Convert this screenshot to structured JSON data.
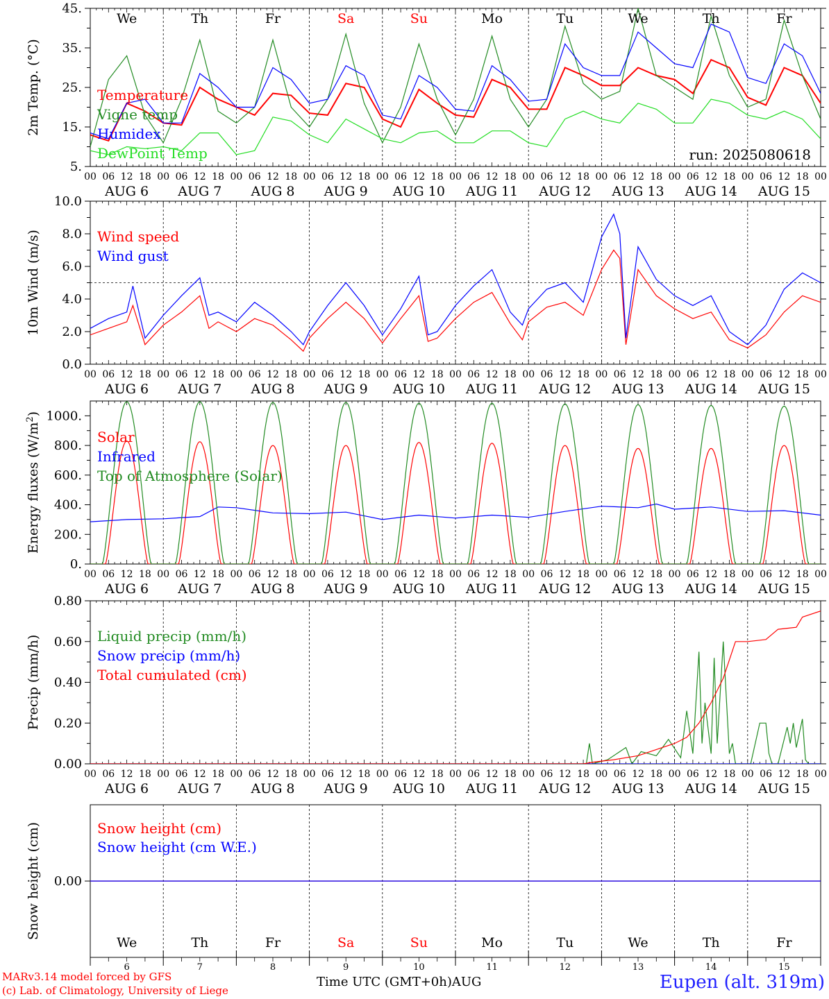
{
  "footer": {
    "credit_line1": "MARv3.14 model forced by GFS",
    "credit_line2": "(c) Lab. of Climatology, University of Liege",
    "station": "Eupen (alt. 319m)",
    "time_axis_label": "Time UTC (GMT+0h)AUG"
  },
  "run_label": "run: 2025080618",
  "day_names": [
    "We",
    "Th",
    "Fr",
    "Sa",
    "Su",
    "Mo",
    "Tu",
    "We",
    "Th",
    "Fr"
  ],
  "weekend_days": [
    3,
    4
  ],
  "day_labels": [
    "AUG 6",
    "AUG 7",
    "AUG 8",
    "AUG 9",
    "AUG 10",
    "AUG 11",
    "AUG 12",
    "AUG 13",
    "AUG 14",
    "AUG 15"
  ],
  "bottom_day_numbers": [
    "6",
    "7",
    "8",
    "9",
    "10",
    "11",
    "12",
    "13",
    "14",
    "15"
  ],
  "hour_ticks": [
    "00",
    "06",
    "12",
    "18"
  ],
  "colors": {
    "red": "#ff0000",
    "dark_green": "#228b22",
    "blue": "#0000ff",
    "light_green": "#22dd22",
    "weekend": "#ff0000"
  },
  "chart_data": [
    {
      "type": "line",
      "ylabel": "2m Temp. (°C)",
      "ylim": [
        5,
        45
      ],
      "yticks": [
        "5.",
        "15.",
        "25.",
        "35.",
        "45."
      ],
      "ytick_values": [
        5,
        15,
        25,
        35,
        45
      ],
      "x_unit": "hours since Aug 6 00 UTC",
      "series": [
        {
          "name": "Temperature",
          "color": "#ff0000",
          "x": [
            0,
            6,
            12,
            18,
            24,
            30,
            36,
            42,
            48,
            54,
            60,
            66,
            72,
            78,
            84,
            90,
            96,
            102,
            108,
            114,
            120,
            126,
            132,
            138,
            144,
            150,
            156,
            162,
            168,
            174,
            180,
            186,
            192,
            198,
            204,
            210,
            216,
            222,
            228,
            234,
            240
          ],
          "values": [
            13,
            11.5,
            21,
            19,
            16,
            15.5,
            25,
            22,
            20,
            18,
            23.5,
            23,
            18.5,
            18,
            26,
            25,
            17,
            15,
            24.5,
            21,
            18,
            17.5,
            27,
            25,
            19.5,
            19.5,
            30,
            28,
            25.5,
            25.5,
            30,
            28,
            27,
            23.5,
            32,
            30,
            22.5,
            20.5,
            30,
            28,
            21
          ]
        },
        {
          "name": "Vigne temp",
          "color": "#228b22",
          "x": [
            0,
            6,
            12,
            18,
            24,
            30,
            36,
            42,
            48,
            54,
            60,
            66,
            72,
            78,
            84,
            90,
            96,
            102,
            108,
            114,
            120,
            126,
            132,
            138,
            144,
            150,
            156,
            162,
            168,
            174,
            180,
            186,
            192,
            198,
            204,
            210,
            216,
            222,
            228,
            234,
            240
          ],
          "values": [
            10,
            27,
            33,
            18,
            11,
            22,
            37,
            19,
            16,
            20,
            37,
            20,
            15,
            22,
            38.5,
            21,
            11,
            20,
            36,
            22,
            13,
            22,
            38,
            22,
            15,
            22,
            40.5,
            26,
            22,
            24,
            45,
            28,
            25,
            22,
            43,
            28,
            20,
            22,
            42,
            28,
            17
          ]
        },
        {
          "name": "Humidex",
          "color": "#0000ff",
          "x": [
            0,
            6,
            12,
            18,
            24,
            30,
            36,
            42,
            48,
            54,
            60,
            66,
            72,
            78,
            84,
            90,
            96,
            102,
            108,
            114,
            120,
            126,
            132,
            138,
            144,
            150,
            156,
            162,
            168,
            174,
            180,
            186,
            192,
            198,
            204,
            210,
            216,
            222,
            228,
            234,
            240
          ],
          "values": [
            13.5,
            12,
            21,
            22,
            16,
            16,
            28.5,
            25,
            20,
            20,
            30,
            27,
            21,
            22,
            30.5,
            28,
            18,
            17,
            28,
            25,
            19.5,
            19,
            30.5,
            27,
            21.5,
            22,
            36,
            30,
            28,
            28,
            39,
            35,
            31,
            30,
            41,
            39,
            27.5,
            26,
            36,
            33,
            23.5
          ]
        },
        {
          "name": "DewPoint Temp",
          "color": "#22dd22",
          "x": [
            0,
            6,
            12,
            18,
            24,
            30,
            36,
            42,
            48,
            54,
            60,
            66,
            72,
            78,
            84,
            90,
            96,
            102,
            108,
            114,
            120,
            126,
            132,
            138,
            144,
            150,
            156,
            162,
            168,
            174,
            180,
            186,
            192,
            198,
            204,
            210,
            216,
            222,
            228,
            234,
            240
          ],
          "values": [
            9,
            8,
            10,
            9.5,
            10,
            9,
            13.5,
            13.5,
            8,
            9,
            17.5,
            16.5,
            13,
            11,
            17,
            14.5,
            12,
            11,
            13.5,
            14,
            11,
            11,
            14,
            14,
            11,
            10,
            17,
            19,
            17,
            16,
            21,
            19.5,
            16,
            16,
            22,
            21,
            18,
            17,
            19,
            17,
            12
          ]
        }
      ],
      "annotations": [
        "run: 2025080618"
      ]
    },
    {
      "type": "line",
      "ylabel": "10m Wind (m/s)",
      "ylim": [
        0,
        10
      ],
      "yticks": [
        "0.0",
        "2.0",
        "4.0",
        "6.0",
        "8.0",
        "10.0"
      ],
      "ytick_values": [
        0,
        2,
        4,
        6,
        8,
        10
      ],
      "reference_line": 5,
      "x_unit": "hours since Aug 6 00 UTC",
      "series": [
        {
          "name": "Wind speed",
          "color": "#ff0000",
          "x": [
            0,
            6,
            12,
            14,
            18,
            24,
            30,
            36,
            39,
            42,
            48,
            54,
            60,
            66,
            70,
            72,
            78,
            84,
            90,
            96,
            102,
            108,
            111,
            114,
            120,
            126,
            132,
            138,
            142,
            144,
            150,
            156,
            162,
            168,
            172,
            174,
            176,
            180,
            186,
            192,
            198,
            204,
            210,
            216,
            222,
            228,
            234,
            240
          ],
          "values": [
            1.8,
            2.2,
            2.6,
            3.6,
            1.2,
            2.4,
            3.2,
            4.2,
            2.2,
            2.6,
            2.0,
            2.8,
            2.4,
            1.5,
            0.8,
            1.6,
            2.8,
            3.8,
            2.8,
            1.3,
            2.8,
            4.2,
            1.4,
            1.6,
            2.8,
            3.8,
            4.4,
            2.5,
            1.5,
            2.6,
            3.5,
            3.8,
            3.0,
            5.8,
            7.0,
            6.5,
            1.2,
            5.8,
            4.2,
            3.4,
            2.8,
            3.2,
            1.5,
            1.0,
            1.8,
            3.2,
            4.2,
            3.8
          ]
        },
        {
          "name": "Wind gust",
          "color": "#0000ff",
          "x": [
            0,
            6,
            12,
            14,
            18,
            24,
            30,
            36,
            39,
            42,
            48,
            54,
            60,
            66,
            70,
            72,
            78,
            84,
            90,
            96,
            102,
            108,
            111,
            114,
            120,
            126,
            132,
            138,
            142,
            144,
            150,
            156,
            162,
            168,
            172,
            174,
            176,
            180,
            186,
            192,
            198,
            204,
            210,
            216,
            222,
            228,
            234,
            240
          ],
          "values": [
            2.2,
            2.8,
            3.2,
            4.8,
            1.6,
            3.0,
            4.2,
            5.3,
            3.0,
            3.2,
            2.6,
            3.8,
            3.0,
            2.0,
            1.2,
            2.0,
            3.6,
            5.0,
            3.6,
            1.8,
            3.4,
            5.4,
            1.8,
            2.0,
            3.6,
            4.8,
            5.8,
            3.2,
            2.4,
            3.4,
            4.6,
            5.0,
            3.8,
            7.8,
            9.2,
            8.0,
            1.6,
            7.2,
            5.2,
            4.2,
            3.6,
            4.2,
            2.0,
            1.2,
            2.4,
            4.6,
            5.6,
            5.0
          ]
        }
      ]
    },
    {
      "type": "line",
      "ylabel": "Energy fluxes (W/m²)",
      "ylim": [
        0,
        1100
      ],
      "yticks": [
        "0.",
        "200.",
        "400.",
        "600.",
        "800.",
        "1000."
      ],
      "ytick_values": [
        0,
        200,
        400,
        600,
        800,
        1000
      ],
      "x_unit": "hours since Aug 6 00 UTC",
      "series": [
        {
          "name": "Solar",
          "color": "#ff0000",
          "daily_peaks": [
            830,
            825,
            800,
            800,
            820,
            815,
            800,
            780,
            780,
            800
          ]
        },
        {
          "name": "Infrared",
          "color": "#0000ff",
          "x": [
            0,
            12,
            24,
            36,
            42,
            48,
            60,
            72,
            84,
            96,
            108,
            120,
            132,
            144,
            156,
            168,
            180,
            186,
            192,
            204,
            216,
            228,
            240
          ],
          "values": [
            285,
            300,
            305,
            320,
            385,
            380,
            345,
            340,
            350,
            300,
            330,
            310,
            330,
            315,
            355,
            390,
            380,
            405,
            370,
            385,
            355,
            360,
            330
          ]
        },
        {
          "name": "Top of Atmosphere (Solar)",
          "color": "#228b22",
          "daily_peaks": [
            1095,
            1095,
            1090,
            1090,
            1085,
            1085,
            1080,
            1075,
            1070,
            1065
          ]
        }
      ]
    },
    {
      "type": "line",
      "ylabel": "Precip (mm/h)",
      "ylim": [
        0,
        0.8
      ],
      "yticks": [
        "0.00",
        "0.20",
        "0.40",
        "0.60",
        "0.80"
      ],
      "ytick_values": [
        0,
        0.2,
        0.4,
        0.6,
        0.8
      ],
      "x_unit": "hours since Aug 6 00 UTC",
      "series": [
        {
          "name": "Liquid precip (mm/h)",
          "color": "#228b22",
          "x": [
            0,
            163,
            164,
            165,
            170,
            176,
            178,
            181,
            186,
            190,
            194,
            196,
            198,
            200,
            201,
            202,
            204,
            205,
            206,
            208,
            210,
            211,
            212,
            216,
            217,
            220,
            222,
            223,
            224,
            226,
            229,
            230,
            231,
            232,
            234,
            235,
            236,
            240
          ],
          "values": [
            0,
            0,
            0.1,
            0,
            0.02,
            0.08,
            0,
            0.06,
            0.04,
            0.12,
            0.03,
            0.26,
            0.05,
            0.55,
            0.1,
            0.3,
            0.05,
            0.52,
            0.1,
            0.6,
            0.05,
            0.1,
            0,
            0,
            0,
            0.2,
            0.2,
            0.05,
            0,
            0,
            0.18,
            0.1,
            0.2,
            0.08,
            0.22,
            0.02,
            0,
            0
          ]
        },
        {
          "name": "Snow precip (mm/h)",
          "color": "#0000ff",
          "x": [
            0,
            240
          ],
          "values": [
            0,
            0
          ]
        },
        {
          "name": "Total cumulated (cm)",
          "color": "#ff0000",
          "x": [
            0,
            162,
            166,
            172,
            180,
            186,
            192,
            196,
            200,
            204,
            208,
            212,
            216,
            222,
            226,
            232,
            234,
            240
          ],
          "values": [
            0,
            0,
            0.01,
            0.02,
            0.04,
            0.07,
            0.1,
            0.13,
            0.2,
            0.3,
            0.42,
            0.6,
            0.6,
            0.61,
            0.66,
            0.67,
            0.72,
            0.75
          ]
        }
      ]
    },
    {
      "type": "line",
      "ylabel": "Snow height (cm)",
      "ylim": [
        -0.1,
        0.1
      ],
      "yticks": [
        "0.00"
      ],
      "ytick_values": [
        0
      ],
      "x_unit": "hours since Aug 6 00 UTC",
      "series": [
        {
          "name": "Snow height (cm)",
          "color": "#ff0000",
          "x": [
            0,
            240
          ],
          "values": [
            0,
            0
          ]
        },
        {
          "name": "Snow height (cm W.E.)",
          "color": "#0000ff",
          "x": [
            0,
            240
          ],
          "values": [
            0,
            0
          ]
        }
      ]
    }
  ]
}
